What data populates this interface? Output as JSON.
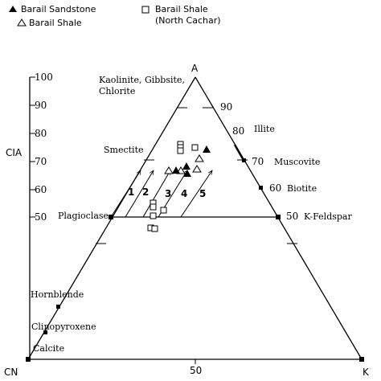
{
  "legend": {
    "barail_sandstone": "Barail Sandstone",
    "barail_shale": "Barail Shale",
    "barail_shale_nc_line1": "Barail Shale",
    "barail_shale_nc_line2": "(North Cachar)"
  },
  "axes": {
    "apex_top": "A",
    "corner_left": "CN",
    "corner_right": "K",
    "base_mid_tick": "50",
    "cia_label": "CIA",
    "cia_ticks": [
      "100",
      "90",
      "80",
      "70",
      "60",
      "50"
    ]
  },
  "edge_ticks": [
    "90",
    "80",
    "70",
    "60",
    "50"
  ],
  "minerals": {
    "kaolinite_line1": "Kaolinite, Gibbsite,",
    "kaolinite_line2": "Chlorite",
    "smectite": "Smectite",
    "illite": "Illite",
    "muscovite": "Muscovite",
    "biotite": "Biotite",
    "plagioclase": "Plagioclase",
    "k_feldspar": "K-Feldspar",
    "hornblende": "Hornblende",
    "clinopyroxene": "Clinopyroxene",
    "calcite": "Calcite"
  },
  "trend_labels": [
    "1",
    "2",
    "3",
    "4",
    "5"
  ]
}
